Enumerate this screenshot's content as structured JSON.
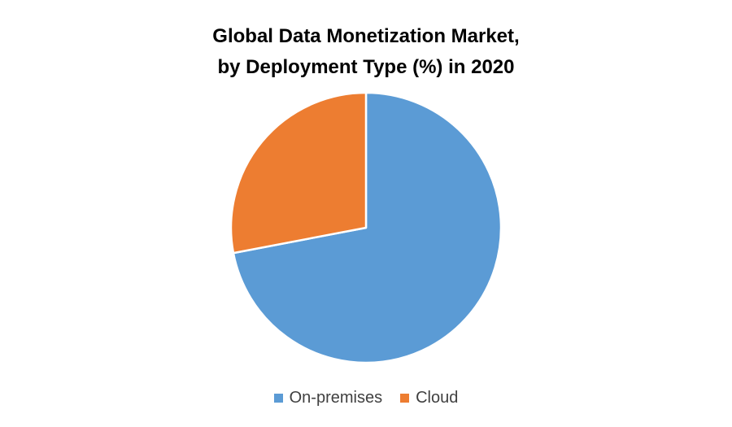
{
  "chart_data": {
    "type": "pie",
    "title_lines": [
      "Global Data Monetization Market,",
      "by Deployment Type (%) in 2020"
    ],
    "categories": [
      "On-premises",
      "Cloud"
    ],
    "values": [
      72,
      28
    ],
    "colors": [
      "#5B9BD5",
      "#ED7D31"
    ],
    "start_angle_deg": 0,
    "direction": "clockwise",
    "legend": "bottom"
  }
}
